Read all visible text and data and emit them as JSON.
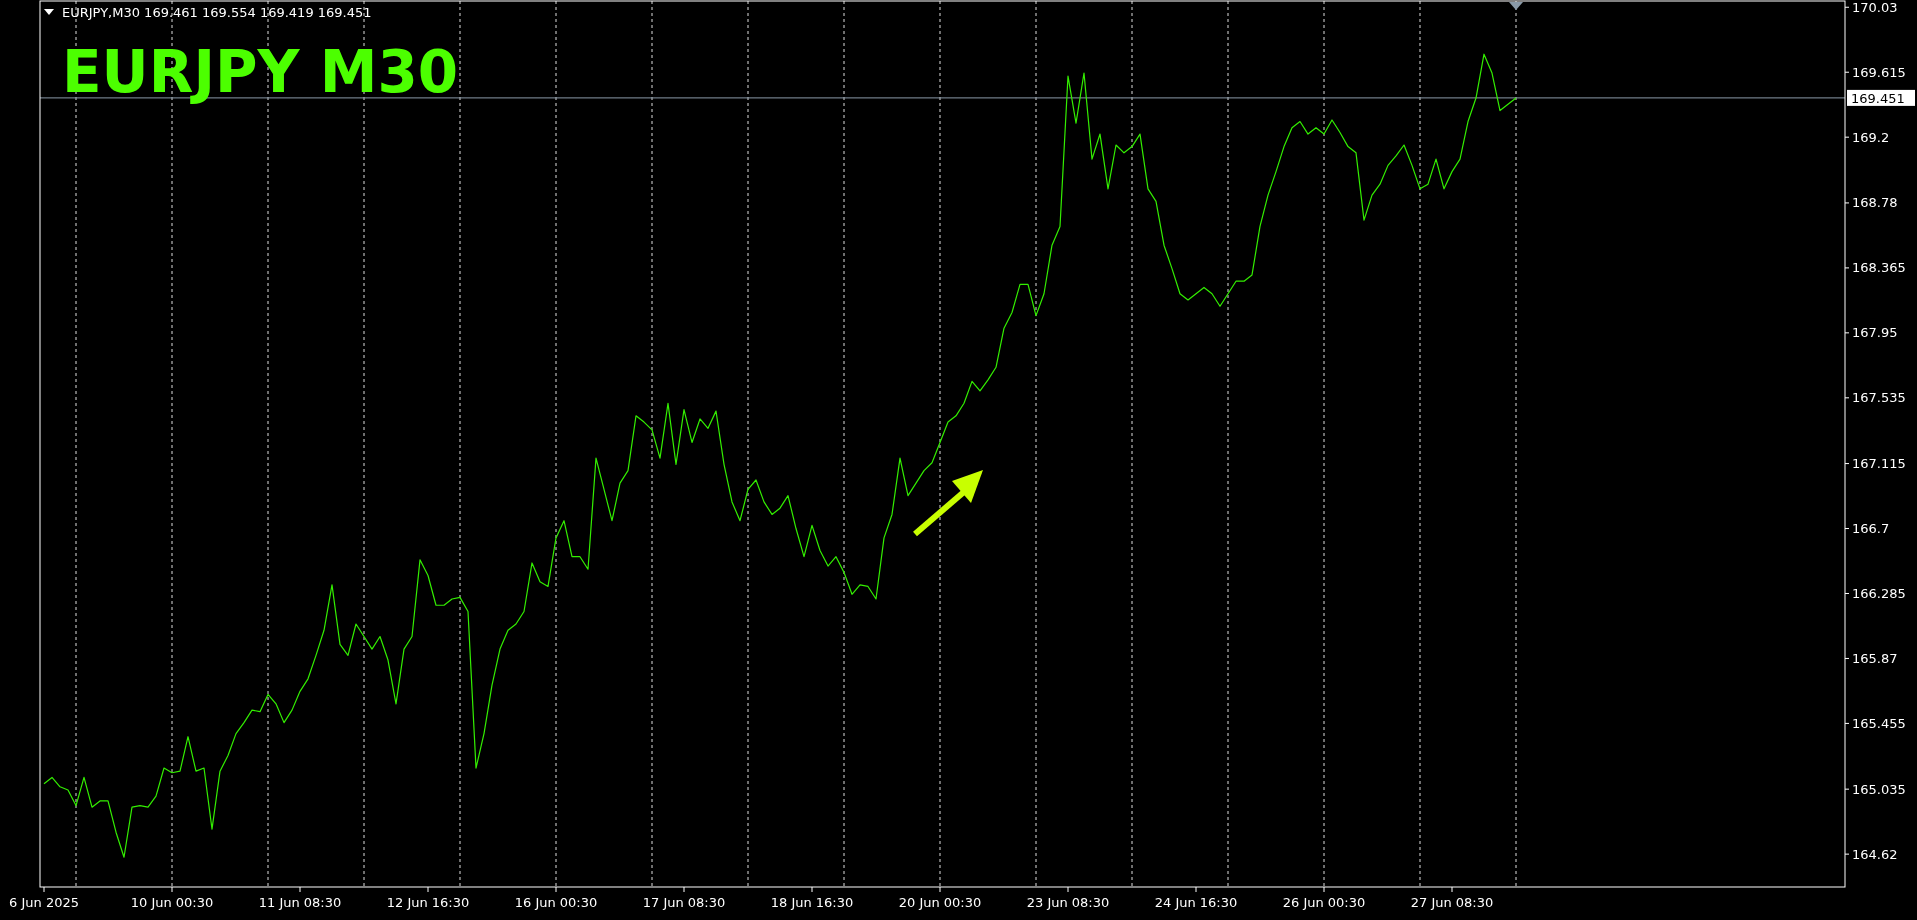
{
  "chart_data": {
    "type": "line",
    "title": "EURJPY  M30",
    "subtitle": "EURJPY,M30  169.461 169.554 169.419 169.451",
    "categories": [
      "6 Jun 2025",
      null,
      null,
      null,
      null,
      null,
      null,
      null,
      null,
      null,
      null,
      null,
      null,
      null,
      null,
      null,
      "10 Jun 00:30",
      null,
      null,
      null,
      null,
      null,
      null,
      null,
      null,
      null,
      null,
      null,
      null,
      null,
      null,
      null,
      "11 Jun 08:30",
      null,
      null,
      null,
      null,
      null,
      null,
      null,
      null,
      null,
      null,
      null,
      null,
      null,
      null,
      null,
      "12 Jun 16:30",
      null,
      null,
      null,
      null,
      null,
      null,
      null,
      null,
      null,
      null,
      null,
      null,
      null,
      null,
      null,
      "16 Jun 00:30",
      null,
      null,
      null,
      null,
      null,
      null,
      null,
      null,
      null,
      null,
      null,
      null,
      null,
      null,
      null,
      "17 Jun 08:30",
      null,
      null,
      null,
      null,
      null,
      null,
      null,
      null,
      null,
      null,
      null,
      null,
      null,
      null,
      null,
      "18 Jun 16:30",
      null,
      null,
      null,
      null,
      null,
      null,
      null,
      null,
      null,
      null,
      null,
      null,
      null,
      null,
      null,
      "20 Jun 00:30",
      null,
      null,
      null,
      null,
      null,
      null,
      null,
      null,
      null,
      null,
      null,
      null,
      null,
      null,
      null,
      "23 Jun 08:30",
      null,
      null,
      null,
      null,
      null,
      null,
      null,
      null,
      null,
      null,
      null,
      null,
      null,
      null,
      null,
      "24 Jun 16:30",
      null,
      null,
      null,
      null,
      null,
      null,
      null,
      null,
      null,
      null,
      null,
      null,
      null,
      null,
      null,
      "26 Jun 00:30",
      null,
      null,
      null,
      null,
      null,
      null,
      null,
      null,
      null,
      null,
      null,
      null,
      null,
      null,
      null,
      "27 Jun 08:30",
      null,
      null,
      null,
      null,
      null,
      null,
      null,
      null
    ],
    "ylim": [
      164.41,
      170.07
    ],
    "yticks": [
      170.03,
      169.615,
      169.2,
      168.78,
      168.365,
      167.95,
      167.535,
      167.115,
      166.7,
      166.285,
      165.87,
      165.455,
      165.035,
      164.62
    ],
    "grid": "x",
    "marker": "none",
    "line_style": "solid",
    "ref_lines": [
      {
        "axis": "y",
        "value": 169.451,
        "label": "169.451",
        "color": "#8a9aa8"
      }
    ],
    "series": [
      {
        "color": "#33ee00",
        "values": [
          165.07,
          165.11,
          165.05,
          165.03,
          164.93,
          165.11,
          164.92,
          164.96,
          164.96,
          164.76,
          164.6,
          164.92,
          164.93,
          164.92,
          164.99,
          165.17,
          165.14,
          165.15,
          165.37,
          165.15,
          165.17,
          164.78,
          165.15,
          165.25,
          165.39,
          165.46,
          165.54,
          165.53,
          165.64,
          165.58,
          165.46,
          165.54,
          165.66,
          165.74,
          165.89,
          166.05,
          166.34,
          165.96,
          165.89,
          166.09,
          166.01,
          165.93,
          166.01,
          165.86,
          165.58,
          165.93,
          166.01,
          166.5,
          166.4,
          166.21,
          166.21,
          166.25,
          166.26,
          166.17,
          165.17,
          165.39,
          165.7,
          165.93,
          166.05,
          166.09,
          166.17,
          166.48,
          166.36,
          166.33,
          166.64,
          166.75,
          166.52,
          166.52,
          166.44,
          167.15,
          166.95,
          166.75,
          166.99,
          167.07,
          167.42,
          167.38,
          167.33,
          167.15,
          167.5,
          167.11,
          167.46,
          167.25,
          167.4,
          167.34,
          167.45,
          167.11,
          166.87,
          166.75,
          166.95,
          167.01,
          166.87,
          166.79,
          166.83,
          166.91,
          166.7,
          166.52,
          166.72,
          166.56,
          166.46,
          166.52,
          166.42,
          166.28,
          166.34,
          166.33,
          166.25,
          166.64,
          166.79,
          167.15,
          166.91,
          166.99,
          167.07,
          167.12,
          167.25,
          167.38,
          167.42,
          167.5,
          167.64,
          167.58,
          167.65,
          167.73,
          167.98,
          168.08,
          168.26,
          168.26,
          168.06,
          168.2,
          168.51,
          168.63,
          169.59,
          169.29,
          169.61,
          169.06,
          169.22,
          168.87,
          169.15,
          169.1,
          169.14,
          169.22,
          168.87,
          168.79,
          168.51,
          168.36,
          168.2,
          168.16,
          168.2,
          168.24,
          168.2,
          168.12,
          168.2,
          168.28,
          168.28,
          168.32,
          168.63,
          168.83,
          168.98,
          169.14,
          169.26,
          169.3,
          169.22,
          169.26,
          169.22,
          169.31,
          169.23,
          169.14,
          169.1,
          168.67,
          168.83,
          168.9,
          169.02,
          169.08,
          169.15,
          169.02,
          168.87,
          168.9,
          169.06,
          168.87,
          168.98,
          169.06,
          169.3,
          169.45,
          169.73,
          169.61,
          169.37,
          169.41,
          169.45
        ]
      }
    ]
  }
}
